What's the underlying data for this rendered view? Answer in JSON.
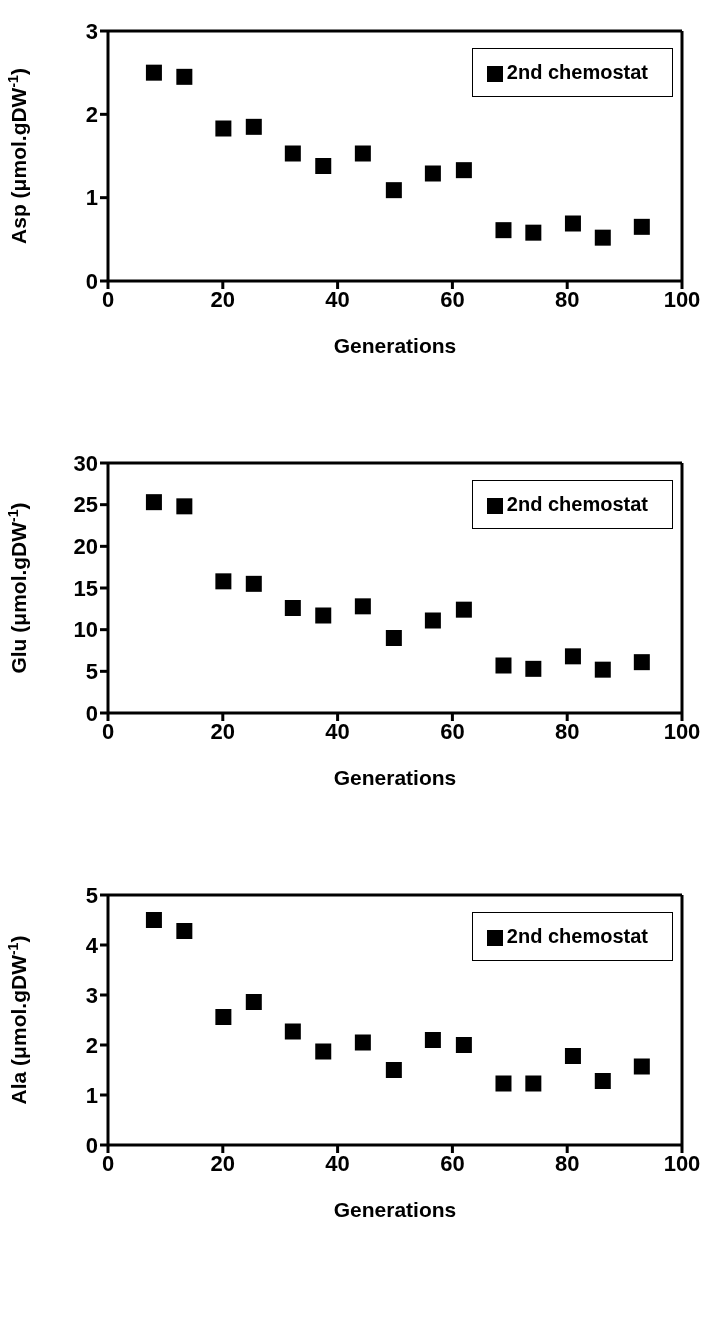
{
  "chart_data": [
    {
      "type": "scatter",
      "xlabel": "Generations",
      "ylabel": "Asp (μmol.gDW$^{-1}$)",
      "x": [
        8,
        13.3,
        20.1,
        25.4,
        32.2,
        37.5,
        44.4,
        49.8,
        56.6,
        62,
        68.9,
        74.1,
        81,
        86.2,
        93
      ],
      "series": [
        {
          "name": "2nd chemostat",
          "color": "#000000",
          "values": [
            2.5,
            2.45,
            1.83,
            1.85,
            1.53,
            1.38,
            1.53,
            1.09,
            1.29,
            1.33,
            0.61,
            0.58,
            0.69,
            0.52,
            0.65
          ]
        }
      ],
      "xlim": [
        0,
        100
      ],
      "xticks": [
        0,
        20,
        40,
        60,
        80,
        100
      ],
      "ylim": [
        0,
        3
      ],
      "yticks": [
        0,
        1,
        2,
        3
      ],
      "marker": "square",
      "legend": "top right",
      "grid": false
    },
    {
      "type": "scatter",
      "xlabel": "Generations",
      "ylabel": "Glu (μmol.gDW$^{-1}$)",
      "x": [
        8,
        13.3,
        20.1,
        25.4,
        32.2,
        37.5,
        44.4,
        49.8,
        56.6,
        62,
        68.9,
        74.1,
        81,
        86.2,
        93
      ],
      "series": [
        {
          "name": "2nd chemostat",
          "color": "#000000",
          "values": [
            25.3,
            24.8,
            15.8,
            15.5,
            12.6,
            11.7,
            12.8,
            9.0,
            11.1,
            12.4,
            5.7,
            5.3,
            6.8,
            5.2,
            6.1
          ]
        }
      ],
      "xlim": [
        0,
        100
      ],
      "xticks": [
        0,
        20,
        40,
        60,
        80,
        100
      ],
      "ylim": [
        0,
        30
      ],
      "yticks": [
        0,
        5,
        10,
        15,
        20,
        25,
        30
      ],
      "marker": "square",
      "legend": "top right",
      "grid": false
    },
    {
      "type": "scatter",
      "xlabel": "Generations",
      "ylabel": "Ala (μmol.gDW$^{-1}$)",
      "x": [
        8,
        13.3,
        20.1,
        25.4,
        32.2,
        37.5,
        44.4,
        49.8,
        56.6,
        62,
        68.9,
        74.1,
        81,
        86.2,
        93
      ],
      "series": [
        {
          "name": "2nd chemostat",
          "color": "#000000",
          "values": [
            4.5,
            4.28,
            2.56,
            2.86,
            2.27,
            1.87,
            2.05,
            1.5,
            2.1,
            2.0,
            1.23,
            1.23,
            1.78,
            1.28,
            1.57
          ]
        }
      ],
      "xlim": [
        0,
        100
      ],
      "xticks": [
        0,
        20,
        40,
        60,
        80,
        100
      ],
      "ylim": [
        0,
        5
      ],
      "yticks": [
        0,
        1,
        2,
        3,
        4,
        5
      ],
      "marker": "square",
      "legend": "top right",
      "grid": false
    }
  ]
}
